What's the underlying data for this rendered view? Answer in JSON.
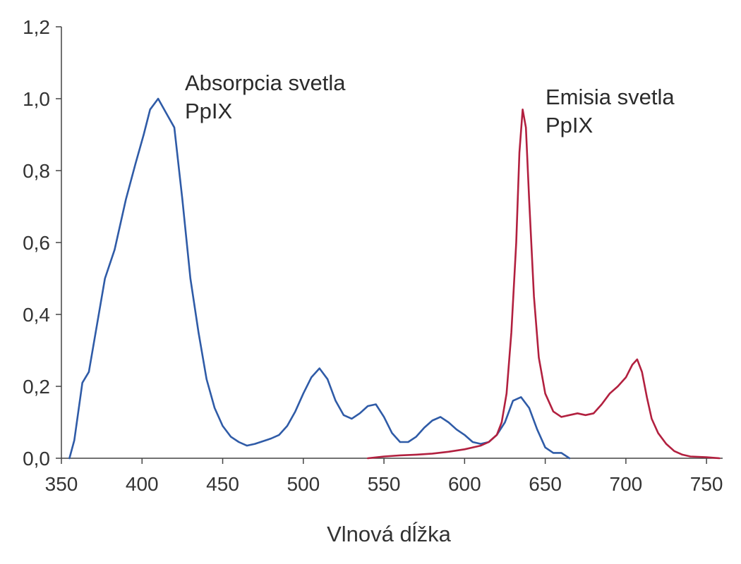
{
  "chart_data": {
    "type": "line",
    "title": "",
    "xlabel": "Vlnová dĺžka",
    "ylabel": "",
    "xlim": [
      350,
      760
    ],
    "ylim": [
      0,
      1.2
    ],
    "x_ticks": [
      350,
      400,
      450,
      500,
      550,
      600,
      650,
      700,
      750
    ],
    "x_tick_labels": [
      "350",
      "400",
      "450",
      "500",
      "550",
      "600",
      "650",
      "700",
      "750"
    ],
    "y_ticks": [
      0,
      0.2,
      0.4,
      0.6,
      0.8,
      1.0,
      1.2
    ],
    "y_tick_labels": [
      "0,0",
      "0,2",
      "0,4",
      "0,6",
      "0,8",
      "1,0",
      "1,2"
    ],
    "grid": false,
    "annotations": [
      {
        "lines": [
          "Absorpcia svetla",
          "PpIX"
        ],
        "series": 0
      },
      {
        "lines": [
          "Emisia svetla",
          "PpIX"
        ],
        "series": 1
      }
    ],
    "series": [
      {
        "color": "#2f5ba7",
        "points": [
          [
            355,
            0.0
          ],
          [
            358,
            0.05
          ],
          [
            363,
            0.21
          ],
          [
            367,
            0.24
          ],
          [
            372,
            0.37
          ],
          [
            377,
            0.5
          ],
          [
            383,
            0.58
          ],
          [
            390,
            0.72
          ],
          [
            396,
            0.82
          ],
          [
            401,
            0.9
          ],
          [
            405,
            0.97
          ],
          [
            410,
            1.0
          ],
          [
            415,
            0.96
          ],
          [
            420,
            0.92
          ],
          [
            425,
            0.72
          ],
          [
            430,
            0.5
          ],
          [
            435,
            0.35
          ],
          [
            440,
            0.22
          ],
          [
            445,
            0.14
          ],
          [
            450,
            0.09
          ],
          [
            455,
            0.06
          ],
          [
            460,
            0.045
          ],
          [
            465,
            0.035
          ],
          [
            470,
            0.04
          ],
          [
            480,
            0.055
          ],
          [
            485,
            0.065
          ],
          [
            490,
            0.09
          ],
          [
            495,
            0.13
          ],
          [
            500,
            0.18
          ],
          [
            505,
            0.225
          ],
          [
            510,
            0.25
          ],
          [
            515,
            0.22
          ],
          [
            520,
            0.16
          ],
          [
            525,
            0.12
          ],
          [
            530,
            0.11
          ],
          [
            535,
            0.125
          ],
          [
            540,
            0.145
          ],
          [
            545,
            0.15
          ],
          [
            550,
            0.115
          ],
          [
            555,
            0.07
          ],
          [
            560,
            0.045
          ],
          [
            565,
            0.045
          ],
          [
            570,
            0.06
          ],
          [
            575,
            0.085
          ],
          [
            580,
            0.105
          ],
          [
            585,
            0.115
          ],
          [
            590,
            0.1
          ],
          [
            595,
            0.08
          ],
          [
            600,
            0.065
          ],
          [
            605,
            0.045
          ],
          [
            610,
            0.04
          ],
          [
            615,
            0.045
          ],
          [
            620,
            0.065
          ],
          [
            625,
            0.1
          ],
          [
            630,
            0.16
          ],
          [
            635,
            0.17
          ],
          [
            640,
            0.14
          ],
          [
            645,
            0.08
          ],
          [
            650,
            0.03
          ],
          [
            655,
            0.015
          ],
          [
            660,
            0.015
          ],
          [
            665,
            0.0
          ]
        ]
      },
      {
        "color": "#b2203f",
        "points": [
          [
            540,
            0.0
          ],
          [
            550,
            0.005
          ],
          [
            560,
            0.008
          ],
          [
            570,
            0.01
          ],
          [
            580,
            0.013
          ],
          [
            590,
            0.018
          ],
          [
            600,
            0.025
          ],
          [
            610,
            0.035
          ],
          [
            615,
            0.045
          ],
          [
            620,
            0.065
          ],
          [
            623,
            0.1
          ],
          [
            626,
            0.18
          ],
          [
            629,
            0.35
          ],
          [
            632,
            0.6
          ],
          [
            634,
            0.85
          ],
          [
            636,
            0.97
          ],
          [
            638,
            0.92
          ],
          [
            640,
            0.72
          ],
          [
            643,
            0.45
          ],
          [
            646,
            0.28
          ],
          [
            650,
            0.18
          ],
          [
            655,
            0.13
          ],
          [
            660,
            0.115
          ],
          [
            665,
            0.12
          ],
          [
            670,
            0.125
          ],
          [
            675,
            0.12
          ],
          [
            680,
            0.125
          ],
          [
            685,
            0.15
          ],
          [
            690,
            0.18
          ],
          [
            695,
            0.2
          ],
          [
            700,
            0.225
          ],
          [
            704,
            0.26
          ],
          [
            707,
            0.275
          ],
          [
            710,
            0.24
          ],
          [
            713,
            0.17
          ],
          [
            716,
            0.11
          ],
          [
            720,
            0.07
          ],
          [
            725,
            0.04
          ],
          [
            730,
            0.02
          ],
          [
            735,
            0.01
          ],
          [
            740,
            0.005
          ],
          [
            750,
            0.003
          ],
          [
            758,
            0.0
          ]
        ]
      }
    ]
  }
}
